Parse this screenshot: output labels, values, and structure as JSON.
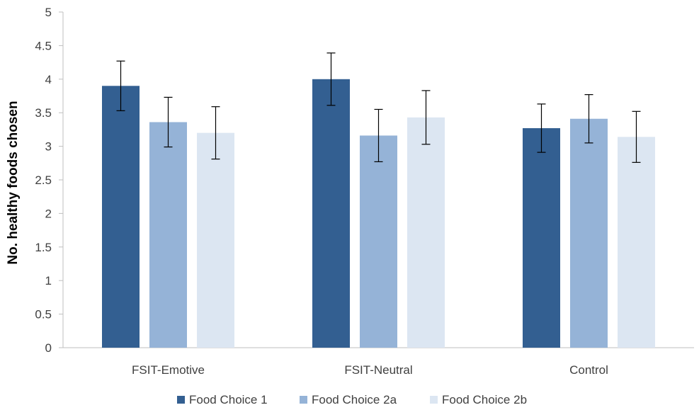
{
  "chart_data": {
    "type": "bar",
    "title": "",
    "xlabel": "",
    "ylabel": "No. healthy foods chosen",
    "ylim": [
      0,
      5
    ],
    "yticks": [
      "0",
      "0.5",
      "1",
      "1.5",
      "2",
      "2.5",
      "3",
      "3.5",
      "4",
      "4.5",
      "5"
    ],
    "grid": false,
    "legend_position": "bottom",
    "categories": [
      "FSIT-Emotive",
      "FSIT-Neutral",
      "Control"
    ],
    "series": [
      {
        "name": "Food Choice 1",
        "color": "#335f91",
        "values": [
          3.9,
          4.0,
          3.27
        ],
        "error": [
          0.37,
          0.39,
          0.36
        ]
      },
      {
        "name": "Food Choice 2a",
        "color": "#95b3d7",
        "values": [
          3.36,
          3.16,
          3.41
        ],
        "error": [
          0.37,
          0.39,
          0.36
        ]
      },
      {
        "name": "Food Choice 2b",
        "color": "#dce6f2",
        "values": [
          3.2,
          3.43,
          3.14
        ],
        "error": [
          0.39,
          0.4,
          0.38
        ]
      }
    ]
  }
}
